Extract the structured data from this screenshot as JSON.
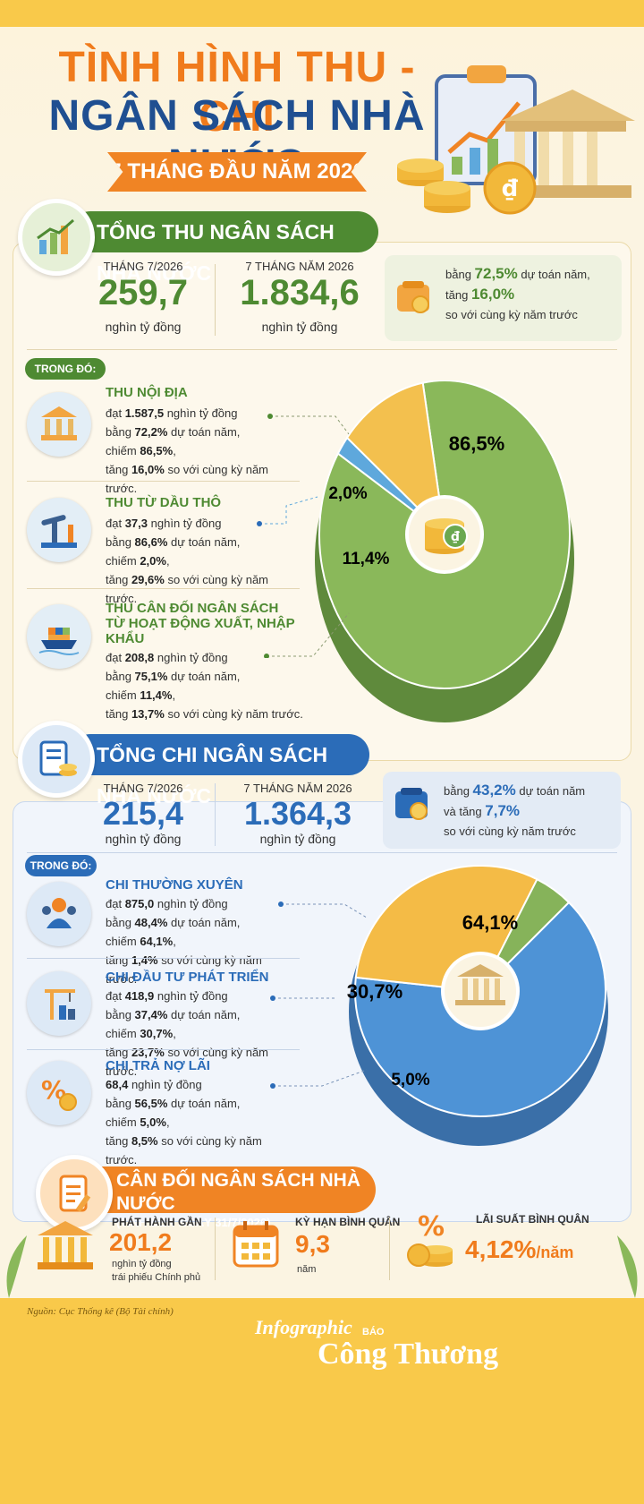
{
  "header": {
    "title_line1": "TÌNH HÌNH THU - CHI",
    "title_line2": "NGÂN SÁCH NHÀ NƯỚC",
    "subtitle": "7 THÁNG ĐẦU NĂM 2026"
  },
  "revenue": {
    "heading": "TỔNG THU NGÂN SÁCH NHÀ NƯỚC",
    "month_label": "THÁNG 7/2026",
    "month_value": "259,7",
    "month_unit": "nghìn tỷ đồng",
    "ytd_label": "7 THÁNG NĂM 2026",
    "ytd_value": "1.834,6",
    "ytd_unit": "nghìn tỷ đồng",
    "note_prefix": "bằng",
    "note_pct": "72,5%",
    "note_mid": "dự toán năm,",
    "note_prefix2": "tăng",
    "note_growth": "16,0%",
    "note_suffix": "so với cùng kỳ năm trước",
    "tag": "TRONG ĐÓ:",
    "items": [
      {
        "title": "THU NỘI ĐỊA",
        "l1a": "đạt",
        "l1b": "1.587,5",
        "l1c": "nghìn tỷ đồng",
        "l2a": "bằng",
        "l2b": "72,2%",
        "l2c": "dự toán năm,",
        "l3a": "chiếm",
        "l3b": "86,5%",
        "l3c": ",",
        "l4a": "tăng",
        "l4b": "16,0%",
        "l4c": "so với cùng kỳ năm trước."
      },
      {
        "title": "THU TỪ DẦU THÔ",
        "l1a": "đạt",
        "l1b": "37,3",
        "l1c": "nghìn tỷ đồng",
        "l2a": "bằng",
        "l2b": "86,6%",
        "l2c": "dự toán năm,",
        "l3a": "chiếm",
        "l3b": "2,0%",
        "l3c": ",",
        "l4a": "tăng",
        "l4b": "29,6%",
        "l4c": "so với cùng kỳ năm trước."
      },
      {
        "title": "THU CÂN ĐỐI NGÂN SÁCH",
        "title2": "TỪ HOẠT ĐỘNG XUẤT, NHẬP KHẨU",
        "l1a": "đạt",
        "l1b": "208,8",
        "l1c": "nghìn tỷ đồng",
        "l2a": "bằng",
        "l2b": "75,1%",
        "l2c": "dự toán năm,",
        "l3a": "chiếm",
        "l3b": "11,4%",
        "l3c": ",",
        "l4a": "tăng",
        "l4b": "13,7%",
        "l4c": "so với cùng kỳ năm trước."
      }
    ],
    "pie": {
      "a": "86,5%",
      "b": "2,0%",
      "c": "11,4%"
    }
  },
  "expenditure": {
    "heading": "TỔNG CHI NGÂN SÁCH NHÀ NƯỚC",
    "month_label": "THÁNG 7/2026",
    "month_value": "215,4",
    "month_unit": "nghìn tỷ đồng",
    "ytd_label": "7 THÁNG NĂM 2026",
    "ytd_value": "1.364,3",
    "ytd_unit": "nghìn tỷ đồng",
    "note_prefix": "bằng",
    "note_pct": "43,2%",
    "note_mid": "dự toán năm",
    "note_prefix2": "và tăng",
    "note_growth": "7,7%",
    "note_suffix": "so với cùng kỳ năm trước",
    "tag": "TRONG ĐÓ:",
    "items": [
      {
        "title": "CHI THƯỜNG XUYÊN",
        "l1a": "đạt",
        "l1b": "875,0",
        "l1c": "nghìn tỷ đồng",
        "l2a": "bằng",
        "l2b": "48,4%",
        "l2c": "dự toán năm,",
        "l3a": "chiếm",
        "l3b": "64,1%",
        "l3c": ",",
        "l4a": "tăng",
        "l4b": "1,4%",
        "l4c": "so với cùng kỳ năm trước."
      },
      {
        "title": "CHI ĐẦU TƯ PHÁT TRIỂN",
        "l1a": "đạt",
        "l1b": "418,9",
        "l1c": "nghìn tỷ đồng",
        "l2a": "bằng",
        "l2b": "37,4%",
        "l2c": "dự toán năm,",
        "l3a": "chiếm",
        "l3b": "30,7%",
        "l3c": ",",
        "l4a": "tăng",
        "l4b": "23,7%",
        "l4c": "so với cùng kỳ năm trước."
      },
      {
        "title": "CHI TRẢ NỢ LÃI",
        "l1a": "",
        "l1b": "68,4",
        "l1c": "nghìn tỷ đồng",
        "l2a": "bằng",
        "l2b": "56,5%",
        "l2c": "dự toán năm,",
        "l3a": "chiếm",
        "l3b": "5,0%",
        "l3c": ",",
        "l4a": "tăng",
        "l4b": "8,5%",
        "l4c": "so với cùng kỳ năm trước."
      }
    ],
    "pie": {
      "a": "64,1%",
      "b": "30,7%",
      "c": "5,0%"
    }
  },
  "balance": {
    "heading": "CÂN ĐỐI NGÂN SÁCH NHÀ NƯỚC",
    "sub": "(TÍNH ĐẾN NGÀY 31/7/2026)",
    "issue_label": "PHÁT HÀNH GẦN",
    "issue_value": "201,2",
    "issue_unit1": "nghìn tỷ đồng",
    "issue_unit2": "trái phiếu Chính phủ",
    "term_label": "KỲ HẠN BÌNH QUÂN",
    "term_value": "9,3",
    "term_unit": "năm",
    "rate_label": "LÃI SUẤT BÌNH QUÂN",
    "rate_value": "4,12%",
    "rate_unit": "/năm"
  },
  "footer": {
    "source": "Nguồn: Cục Thống kê (Bộ Tài chính)",
    "brand_small": "Infographic",
    "brand_tiny": "BÁO",
    "brand_main": "Công Thương"
  },
  "chart_data": [
    {
      "type": "pie",
      "categories": [
        "THU NỘI ĐỊA",
        "THU TỪ DẦU THÔ",
        "THU CÂN ĐỐI NGÂN SÁCH TỪ HOẠT ĐỘNG XUẤT, NHẬP KHẨU"
      ],
      "values": [
        86.5,
        2.0,
        11.4
      ],
      "colors": [
        "#8ab85a",
        "#5ea8dc",
        "#f3c04e"
      ]
    },
    {
      "type": "pie",
      "categories": [
        "CHI THƯỜNG XUYÊN",
        "CHI ĐẦU TƯ PHÁT TRIỂN",
        "CHI TRẢ NỢ LÃI"
      ],
      "values": [
        64.1,
        30.7,
        5.0
      ],
      "colors": [
        "#4e93d6",
        "#f4bb46",
        "#86b35a"
      ]
    }
  ],
  "colors": {
    "orange": "#f07b1c",
    "navy": "#1f4f91",
    "green": "#4e8a32",
    "blue": "#2b6cb8",
    "yellow": "#f9c94a"
  }
}
